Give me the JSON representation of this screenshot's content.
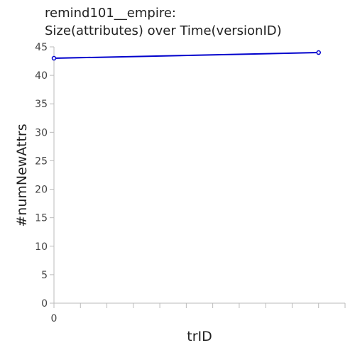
{
  "chart_data": {
    "type": "line",
    "title_lines": [
      "remind101__empire:",
      "Size(attributes) over Time(versionID)"
    ],
    "xlabel": "trID",
    "ylabel": "#numNewAttrs",
    "xlim": [
      0,
      1.1
    ],
    "ylim": [
      0,
      45
    ],
    "y_ticks": [
      0,
      5,
      10,
      15,
      20,
      25,
      30,
      35,
      40,
      45
    ],
    "x_tick_labels": [
      {
        "value": 0,
        "label": "0"
      }
    ],
    "x_minor_tick_count": 11,
    "grid": false,
    "legend": "none",
    "series": [
      {
        "x": [
          0,
          1
        ],
        "y": [
          43,
          44
        ],
        "color": "#0000cc"
      }
    ]
  }
}
